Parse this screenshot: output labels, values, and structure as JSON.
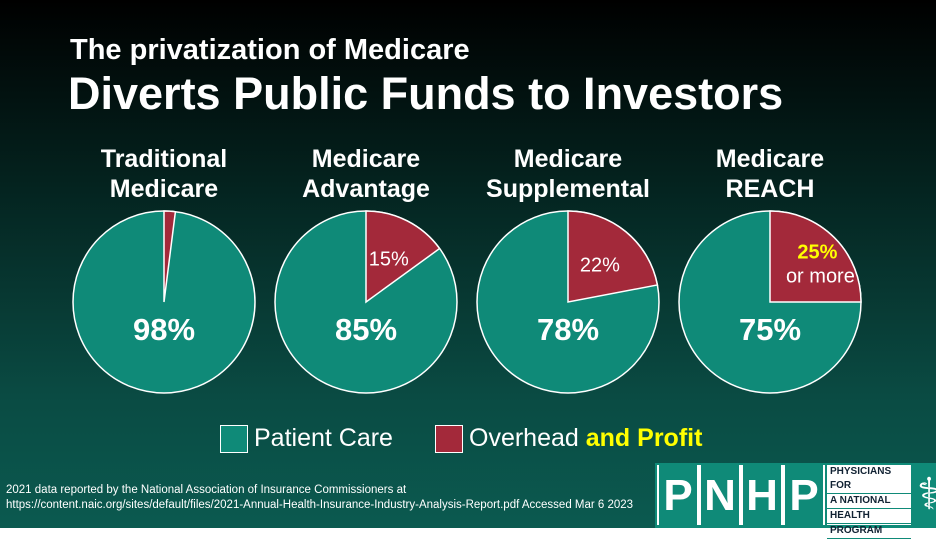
{
  "header": {
    "subtitle": "The privatization of Medicare",
    "title": "Diverts Public Funds to Investors"
  },
  "chart_data": {
    "type": "pie",
    "title": "Diverts Public Funds to Investors",
    "legend": [
      "Patient Care",
      "Overhead",
      "and Profit"
    ],
    "legend_placement": "bottom",
    "colors": {
      "patient_care": "#0f8a78",
      "overhead": "#a3293a",
      "highlight": "#ffff00"
    },
    "pies": [
      {
        "title_lines": [
          "Traditional",
          "Medicare"
        ],
        "patient_care": 98,
        "overhead": 2,
        "patient_label": "98%",
        "overhead_label": "",
        "overhead_label2": ""
      },
      {
        "title_lines": [
          "Medicare",
          "Advantage"
        ],
        "patient_care": 85,
        "overhead": 15,
        "patient_label": "85%",
        "overhead_label": "15%",
        "overhead_label2": ""
      },
      {
        "title_lines": [
          "Medicare",
          "Supplemental"
        ],
        "patient_care": 78,
        "overhead": 22,
        "patient_label": "78%",
        "overhead_label": "22%",
        "overhead_label2": ""
      },
      {
        "title_lines": [
          "Medicare",
          "REACH"
        ],
        "patient_care": 75,
        "overhead": 25,
        "patient_label": "75%",
        "overhead_label": "25%",
        "overhead_label2": "or more"
      }
    ]
  },
  "footer": {
    "source_line1": "2021 data reported by the National Association of Insurance Commissioners at",
    "source_line2": "https://content.naic.org/sites/default/files/2021-Annual-Health-Insurance-Industry-Analysis-Report.pdf Accessed Mar 6 2023"
  },
  "logo": {
    "letters": [
      "P",
      "N",
      "H",
      "P"
    ],
    "lines": [
      "PHYSICIANS FOR",
      "A NATIONAL",
      "HEALTH",
      "PROGRAM"
    ]
  }
}
